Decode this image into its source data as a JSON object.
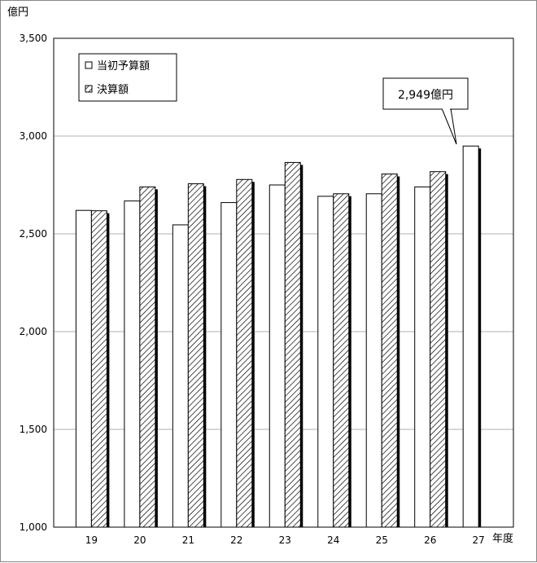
{
  "chart_data": {
    "type": "bar",
    "y_unit": "億円",
    "x_unit": "年度",
    "categories": [
      "19",
      "20",
      "21",
      "22",
      "23",
      "24",
      "25",
      "26",
      "27"
    ],
    "series": [
      {
        "name": "当初予算額",
        "values": [
          2620,
          2668,
          2546,
          2660,
          2750,
          2692,
          2705,
          2740,
          2949
        ],
        "pattern": "white"
      },
      {
        "name": "決算額",
        "values": [
          2618,
          2740,
          2756,
          2778,
          2865,
          2705,
          2806,
          2818,
          null
        ],
        "pattern": "hatched"
      }
    ],
    "ylim": [
      1000,
      3500
    ],
    "yticks": [
      "1,000",
      "1,500",
      "2,000",
      "2,500",
      "3,000",
      "3,500"
    ],
    "ytick_values": [
      1000,
      1500,
      2000,
      2500,
      3000,
      3500
    ],
    "grid": "horizontal",
    "legend_position": "top-left",
    "annotation": {
      "text": "2,949億円",
      "category": "27"
    }
  }
}
